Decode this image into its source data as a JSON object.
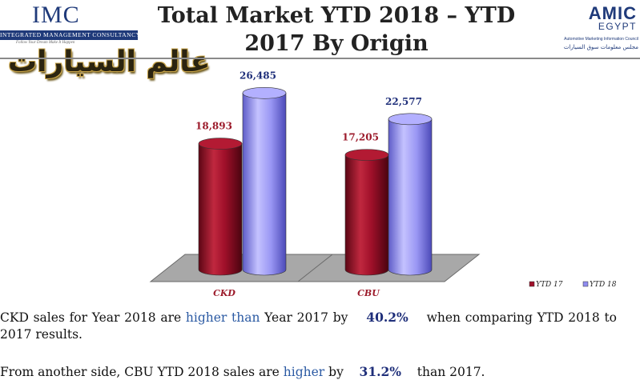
{
  "header": {
    "imc": {
      "name": "IMC",
      "tagline": "INTEGRATED MANAGEMENT CONSULTANCY",
      "slogan": "Follow Your Dream Make It Happen"
    },
    "arabic_logo": "عالم السيارات",
    "title": "Total Market YTD 2018 – YTD 2017 By Origin",
    "amic": {
      "name": "AMIC",
      "country": "EGYPT",
      "subtitle": "Automotive Marketing Information Council",
      "arabic": "مجلس معلومات سوق السيارات"
    }
  },
  "chart_data": {
    "type": "bar",
    "style": "3d-cylinder",
    "categories": [
      "CKD",
      "CBU"
    ],
    "series": [
      {
        "name": "YTD 17",
        "values": [
          18893,
          17205
        ],
        "labels": [
          "18,893",
          "17,205"
        ],
        "color": "#a0102a"
      },
      {
        "name": "YTD 18",
        "values": [
          26485,
          22577
        ],
        "labels": [
          "26,485",
          "22,577"
        ],
        "color": "#8f8cf0"
      }
    ],
    "ylim": [
      0,
      30000
    ],
    "grid": false,
    "legend": "bottom-right",
    "title": "",
    "xlabel": "",
    "ylabel": ""
  },
  "text": {
    "p1_a": "CKD sales for Year 2018 are",
    "p1_hl": "higher than",
    "p1_b": "Year 2017 by",
    "p1_pct": "40.2%",
    "p1_c": "when comparing YTD 2018 to 2017 results.",
    "p2_a": "From another side, CBU YTD 2018 sales are",
    "p2_hl": "higher",
    "p2_b": "by",
    "p2_pct": "31.2%",
    "p2_c": "than 2017."
  },
  "colors": {
    "ytd17": "#a0102a",
    "ytd18": "#8f8cf0",
    "floor": "#a8a8a8",
    "value17": "#9c1b2b",
    "value18": "#1f2f7a"
  }
}
